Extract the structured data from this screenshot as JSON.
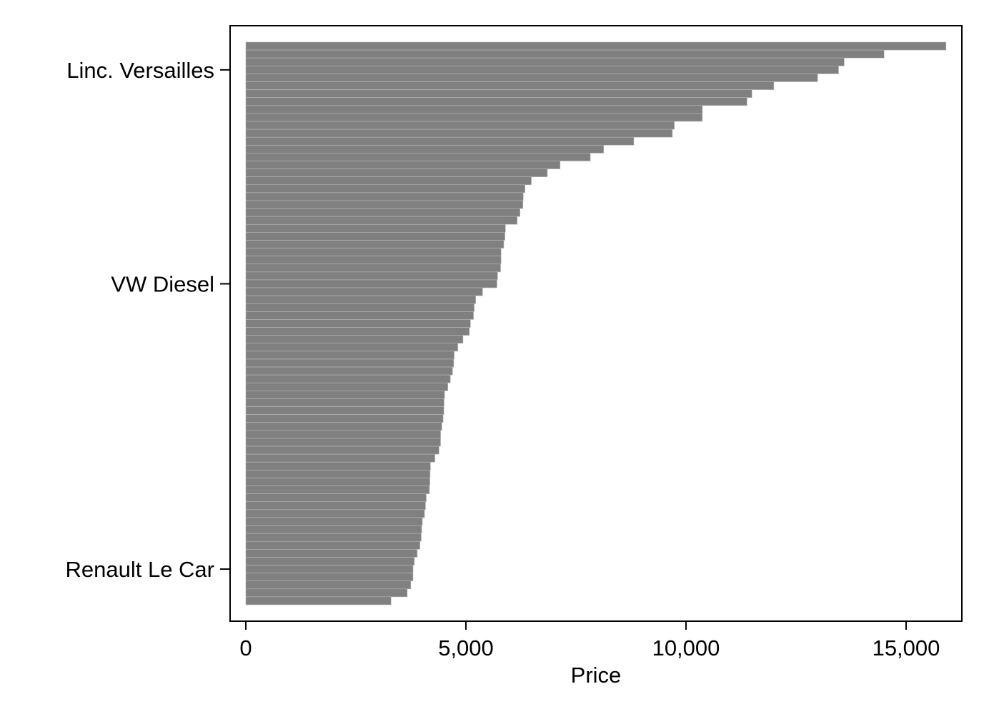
{
  "chart_data": {
    "type": "bar",
    "orientation": "horizontal",
    "sort": "descending",
    "xlabel": "Price",
    "ylabel": "",
    "xlim": [
      0,
      15906
    ],
    "x_ticks": [
      0,
      5000,
      10000,
      15000
    ],
    "x_tick_labels": [
      "0",
      "5,000",
      "10,000",
      "15,000"
    ],
    "y_labels": [
      {
        "label": "Linc. Versailles",
        "rank": 4
      },
      {
        "label": "VW Diesel",
        "rank": 31
      },
      {
        "label": "Renault Le Car",
        "rank": 67
      }
    ],
    "bar_color": "#808080",
    "grid": false,
    "legend": "none",
    "values": [
      15906,
      14500,
      13594,
      13466,
      12990,
      11995,
      11497,
      11385,
      10372,
      10371,
      9735,
      9690,
      8814,
      8129,
      7827,
      7140,
      6850,
      6486,
      6342,
      6303,
      6295,
      6229,
      6165,
      5899,
      5886,
      5860,
      5799,
      5798,
      5788,
      5719,
      5705,
      5379,
      5222,
      5189,
      5172,
      5104,
      5079,
      4934,
      4816,
      4733,
      4723,
      4697,
      4647,
      4589,
      4516,
      4504,
      4499,
      4482,
      4453,
      4425,
      4424,
      4389,
      4296,
      4195,
      4187,
      4181,
      4172,
      4099,
      4082,
      4060,
      4010,
      3995,
      3984,
      3955,
      3895,
      3829,
      3799,
      3798,
      3748,
      3667,
      3299
    ]
  }
}
